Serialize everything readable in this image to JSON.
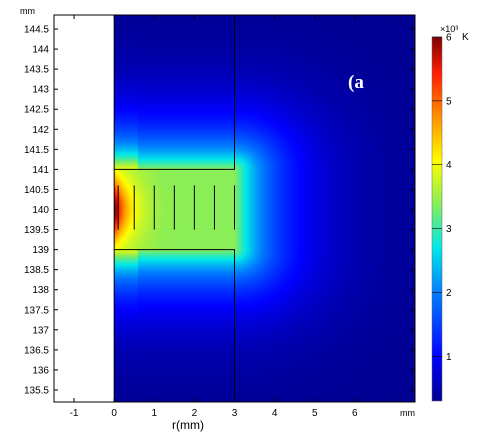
{
  "chart_data": {
    "type": "heatmap",
    "panel_label": "(a",
    "xlabel": "r(mm)",
    "x_unit": "mm",
    "y_unit": "mm",
    "xlim": [
      -1.5,
      7.5
    ],
    "ylim": [
      135.2,
      144.85
    ],
    "x_ticks": [
      -1,
      0,
      1,
      2,
      3,
      4,
      5,
      6
    ],
    "x_tick_labels": [
      "-1",
      "0",
      "1",
      "2",
      "3",
      "4",
      "5",
      "6"
    ],
    "y_ticks": [
      135.5,
      136,
      136.5,
      137,
      137.5,
      138,
      138.5,
      139,
      139.5,
      140,
      140.5,
      141,
      141.5,
      142,
      142.5,
      143,
      143.5,
      144,
      144.5
    ],
    "y_tick_labels": [
      "135.5",
      "136",
      "136.5",
      "137",
      "137.5",
      "138",
      "138.5",
      "139",
      "139.5",
      "140",
      "140.5",
      "141",
      "141.5",
      "142",
      "142.5",
      "143",
      "143.5",
      "144",
      "144.5"
    ],
    "colorbar": {
      "unit": "K",
      "multiplier": "×10³",
      "ticks": [
        1,
        2,
        3,
        4,
        5,
        6
      ],
      "tick_labels": [
        "1",
        "2",
        "3",
        "4",
        "5",
        "6"
      ],
      "range": [
        0.3,
        6.0
      ],
      "colormap": "rainbow"
    },
    "field": {
      "quantity": "temperature",
      "max_value": 6.0,
      "min_value": 0.3,
      "peak_location": [
        0.1,
        140.0
      ],
      "plateau_region": {
        "r": [
          0.9,
          3.0
        ],
        "z": [
          139.0,
          141.0
        ],
        "value": 3.4
      }
    },
    "geometry": {
      "blank_region": {
        "r": [
          -1.5,
          0.0
        ],
        "z": [
          135.2,
          144.85
        ]
      },
      "outline": [
        [
          0,
          141.0
        ],
        [
          3.0,
          141.0
        ],
        [
          3.0,
          144.85
        ]
      ],
      "outline_bottom": [
        [
          0,
          139.0
        ],
        [
          3.0,
          139.0
        ],
        [
          3.0,
          135.2
        ]
      ],
      "inner_lines_r": [
        0.1,
        0.5,
        1.0,
        1.5,
        2.0,
        2.5,
        3.0
      ],
      "inner_lines_z": [
        139.5,
        140.6
      ]
    }
  }
}
